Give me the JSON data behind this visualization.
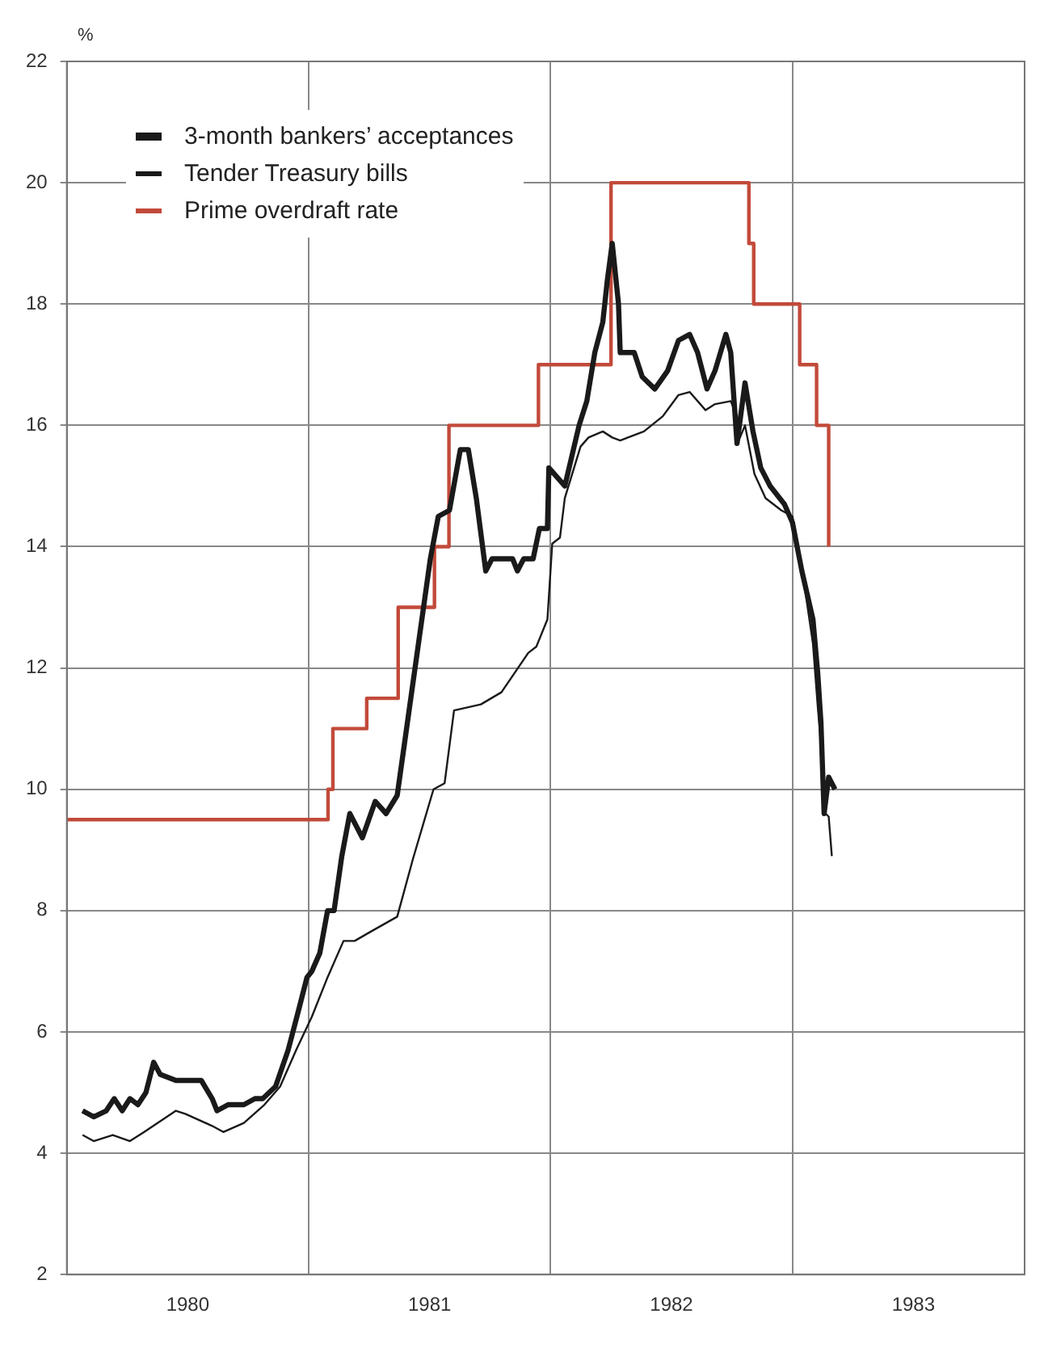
{
  "chart_data": {
    "type": "line",
    "ylabel": "%",
    "xlim": [
      1980,
      1983.96
    ],
    "ylim": [
      2,
      22
    ],
    "yticks": [
      2,
      4,
      6,
      8,
      10,
      12,
      14,
      16,
      18,
      20,
      22
    ],
    "xticks": [
      {
        "value": 1980.5,
        "label": "1980"
      },
      {
        "value": 1981,
        "label": null
      },
      {
        "value": 1981.5,
        "label": "1981"
      },
      {
        "value": 1982,
        "label": null
      },
      {
        "value": 1982.5,
        "label": "1982"
      },
      {
        "value": 1983,
        "label": null
      },
      {
        "value": 1983.5,
        "label": "1983"
      }
    ],
    "grid": true,
    "legend": "top left",
    "line_style": "solid",
    "marker": "none",
    "series": [
      {
        "name": "3-month bankers’ acceptances",
        "color": "#1a1a1a",
        "type": "line",
        "x": [
          1980.065,
          1980.111,
          1980.163,
          1980.196,
          1980.229,
          1980.261,
          1980.294,
          1980.327,
          1980.359,
          1980.386,
          1980.451,
          1980.556,
          1980.601,
          1980.621,
          1980.667,
          1980.732,
          1980.778,
          1980.81,
          1980.863,
          1980.915,
          1980.961,
          1980.993,
          1981.013,
          1981.046,
          1981.078,
          1981.105,
          1981.137,
          1981.17,
          1981.222,
          1981.275,
          1981.32,
          1981.366,
          1981.503,
          1981.536,
          1981.582,
          1981.627,
          1981.66,
          1981.693,
          1981.732,
          1981.758,
          1981.843,
          1981.863,
          1981.889,
          1981.928,
          1981.954,
          1981.987,
          1981.993,
          1982.059,
          1982.118,
          1982.15,
          1982.183,
          1982.216,
          1982.235,
          1982.255,
          1982.281,
          1982.288,
          1982.346,
          1982.379,
          1982.431,
          1982.484,
          1982.529,
          1982.575,
          1982.608,
          1982.647,
          1982.68,
          1982.725,
          1982.745,
          1982.771,
          1982.804,
          1982.837,
          1982.869,
          1982.908,
          1982.967,
          1983.0,
          1983.039,
          1983.085,
          1983.105,
          1983.118,
          1983.131,
          1983.15,
          1983.176
        ],
        "values": [
          4.7,
          4.6,
          4.7,
          4.9,
          4.7,
          4.9,
          4.8,
          5.0,
          5.5,
          5.3,
          5.2,
          5.2,
          4.9,
          4.7,
          4.8,
          4.8,
          4.9,
          4.9,
          5.1,
          5.7,
          6.4,
          6.9,
          7.0,
          7.3,
          8.0,
          8.0,
          8.9,
          9.6,
          9.2,
          9.8,
          9.6,
          9.9,
          13.8,
          14.5,
          14.6,
          15.6,
          15.6,
          14.8,
          13.6,
          13.8,
          13.8,
          13.6,
          13.8,
          13.8,
          14.3,
          14.3,
          15.3,
          15.0,
          16.0,
          16.4,
          17.2,
          17.7,
          18.4,
          19.0,
          18.0,
          17.2,
          17.2,
          16.8,
          16.6,
          16.9,
          17.4,
          17.5,
          17.2,
          16.6,
          16.9,
          17.5,
          17.2,
          15.7,
          16.7,
          15.9,
          15.3,
          15.0,
          14.7,
          14.4,
          13.6,
          12.8,
          11.9,
          11.1,
          9.6,
          10.2,
          10.0
        ]
      },
      {
        "name": "Tender Treasury bills",
        "color": "#1a1a1a",
        "type": "line",
        "x": [
          1980.065,
          1980.111,
          1980.19,
          1980.261,
          1980.32,
          1980.451,
          1980.49,
          1980.601,
          1980.647,
          1980.732,
          1980.817,
          1980.882,
          1980.948,
          1981.013,
          1981.078,
          1981.144,
          1981.19,
          1981.255,
          1981.366,
          1981.431,
          1981.516,
          1981.562,
          1981.601,
          1981.712,
          1981.797,
          1981.908,
          1981.941,
          1981.987,
          1982.007,
          1982.039,
          1982.059,
          1982.124,
          1982.157,
          1982.216,
          1982.255,
          1982.288,
          1982.32,
          1982.386,
          1982.464,
          1982.529,
          1982.575,
          1982.641,
          1982.68,
          1982.745,
          1982.771,
          1982.778,
          1982.804,
          1982.843,
          1982.889,
          1982.954,
          1983.0,
          1983.039,
          1983.085,
          1983.105,
          1983.124,
          1983.137,
          1983.15,
          1983.163
        ],
        "values": [
          4.3,
          4.2,
          4.3,
          4.2,
          4.35,
          4.7,
          4.65,
          4.45,
          4.35,
          4.5,
          4.8,
          5.1,
          5.7,
          6.25,
          6.9,
          7.5,
          7.5,
          7.65,
          7.9,
          8.85,
          10.0,
          10.1,
          11.3,
          11.4,
          11.6,
          12.25,
          12.35,
          12.8,
          14.05,
          14.15,
          14.8,
          15.65,
          15.8,
          15.9,
          15.8,
          15.75,
          15.8,
          15.9,
          16.15,
          16.5,
          16.55,
          16.25,
          16.35,
          16.4,
          16.15,
          15.75,
          16.0,
          15.2,
          14.8,
          14.6,
          14.5,
          13.65,
          12.4,
          11.35,
          10.5,
          9.6,
          9.55,
          8.9
        ]
      },
      {
        "name": "Prime overdraft rate",
        "color": "#c24a3a",
        "type": "step",
        "x": [
          1980,
          1981.08,
          1981.1,
          1981.24,
          1981.37,
          1981.52,
          1981.58,
          1981.95,
          1982.25,
          1982.82,
          1982.84,
          1983.03,
          1983.1,
          1983.15
        ],
        "values": [
          9.5,
          10,
          11,
          11.5,
          13,
          14,
          16,
          17,
          20,
          19,
          18,
          17,
          16,
          14
        ]
      }
    ]
  }
}
